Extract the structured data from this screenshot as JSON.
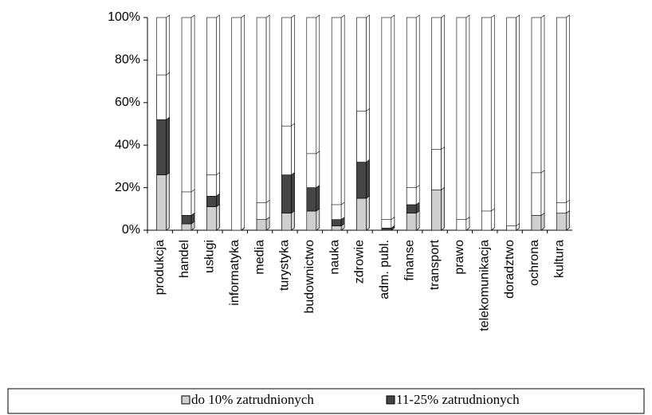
{
  "chart_data": {
    "type": "bar",
    "categories": [
      "produkcja",
      "handel",
      "usługi",
      "informatyka",
      "media",
      "turystyka",
      "budownictwo",
      "nauka",
      "zdrowie",
      "adm. publ.",
      "finanse",
      "transport",
      "prawo",
      "telekomunikacja",
      "doradztwo",
      "ochrona",
      "kultura"
    ],
    "series": [
      {
        "name": "do 10% zatrudnionych",
        "color": "#cfcfcf",
        "values": [
          26,
          3,
          11,
          0,
          5,
          8,
          9,
          2,
          15,
          0,
          8,
          19,
          0,
          0,
          0,
          7,
          8
        ]
      },
      {
        "name": "11-25% zatrudnionych",
        "color": "#454545",
        "values": [
          26,
          4,
          5,
          0,
          0,
          18,
          11,
          3,
          17,
          1,
          4,
          0,
          0,
          0,
          0,
          0,
          0
        ]
      },
      {
        "color": "#ffffff",
        "values": [
          21,
          11,
          10,
          0,
          8,
          23,
          16,
          7,
          24,
          4,
          8,
          19,
          5,
          9,
          2,
          20,
          5
        ]
      }
    ],
    "ylim": [
      0,
      100
    ],
    "yticks": [
      {
        "value": 0,
        "label": "0%"
      },
      {
        "value": 20,
        "label": "20%"
      },
      {
        "value": 40,
        "label": "40%"
      },
      {
        "value": 60,
        "label": "60%"
      },
      {
        "value": 80,
        "label": "80%"
      },
      {
        "value": 100,
        "label": "100%"
      }
    ],
    "stacked": true
  }
}
